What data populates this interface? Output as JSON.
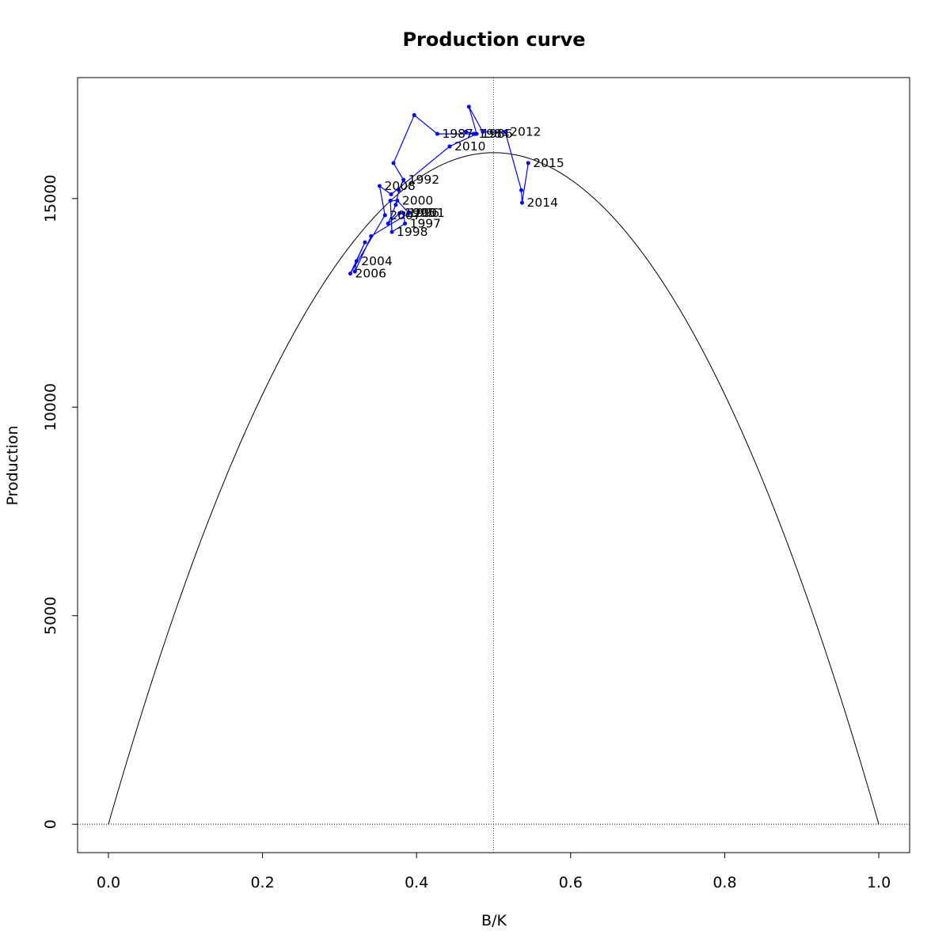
{
  "chart_data": {
    "type": "line",
    "title": "Production curve",
    "xlabel": "B/K",
    "ylabel": "Production",
    "xlim": [
      -0.04,
      1.04
    ],
    "ylim": [
      -680,
      17900
    ],
    "x_ticks": [
      0.0,
      0.2,
      0.4,
      0.6,
      0.8,
      1.0
    ],
    "x_tick_labels": [
      "0.0",
      "0.2",
      "0.4",
      "0.6",
      "0.8",
      "1.0"
    ],
    "y_ticks": [
      0,
      5000,
      10000,
      15000
    ],
    "y_tick_labels": [
      "0",
      "5000",
      "10000",
      "15000"
    ],
    "reference_lines": {
      "vertical_x": 0.5,
      "horizontal_y": 0
    },
    "production_curve": {
      "type": "parabola",
      "peak_x": 0.5,
      "peak_y": 16100,
      "zero_at": [
        0,
        1
      ],
      "color": "#000000"
    },
    "series": [
      {
        "color": "#0000ff",
        "points": [
          {
            "x": 0.474,
            "y": 16550,
            "label": "1984"
          },
          {
            "x": 0.464,
            "y": 16600,
            "label": ""
          },
          {
            "x": 0.476,
            "y": 16550,
            "label": ""
          },
          {
            "x": 0.427,
            "y": 16550,
            "label": "1987"
          },
          {
            "x": 0.397,
            "y": 17000,
            "label": ""
          },
          {
            "x": 0.37,
            "y": 15850,
            "label": ""
          },
          {
            "x": 0.383,
            "y": 15450,
            "label": "1992"
          },
          {
            "x": 0.377,
            "y": 15200,
            "label": ""
          },
          {
            "x": 0.373,
            "y": 14850,
            "label": ""
          },
          {
            "x": 0.363,
            "y": 14400,
            "label": ""
          },
          {
            "x": 0.378,
            "y": 14650,
            "label": "1995"
          },
          {
            "x": 0.383,
            "y": 14650,
            "label": "1996"
          },
          {
            "x": 0.385,
            "y": 14400,
            "label": "1997"
          },
          {
            "x": 0.368,
            "y": 14200,
            "label": "1998"
          },
          {
            "x": 0.366,
            "y": 14950,
            "label": ""
          },
          {
            "x": 0.375,
            "y": 14950,
            "label": "2000"
          },
          {
            "x": 0.39,
            "y": 14650,
            "label": "2001"
          },
          {
            "x": 0.341,
            "y": 14100,
            "label": ""
          },
          {
            "x": 0.32,
            "y": 13250,
            "label": ""
          },
          {
            "x": 0.322,
            "y": 13500,
            "label": "2004"
          },
          {
            "x": 0.333,
            "y": 13950,
            "label": ""
          },
          {
            "x": 0.314,
            "y": 13200,
            "label": "2006"
          },
          {
            "x": 0.359,
            "y": 14600,
            "label": "2007"
          },
          {
            "x": 0.352,
            "y": 15300,
            "label": "2008"
          },
          {
            "x": 0.367,
            "y": 15100,
            "label": ""
          },
          {
            "x": 0.443,
            "y": 16250,
            "label": "2010"
          },
          {
            "x": 0.478,
            "y": 16550,
            "label": "1986"
          },
          {
            "x": 0.468,
            "y": 17200,
            "label": ""
          },
          {
            "x": 0.486,
            "y": 16600,
            "label": ""
          },
          {
            "x": 0.515,
            "y": 16600,
            "label": "2012"
          },
          {
            "x": 0.536,
            "y": 15200,
            "label": ""
          },
          {
            "x": 0.537,
            "y": 14900,
            "label": "2014"
          },
          {
            "x": 0.545,
            "y": 15850,
            "label": "2015"
          }
        ]
      }
    ]
  }
}
